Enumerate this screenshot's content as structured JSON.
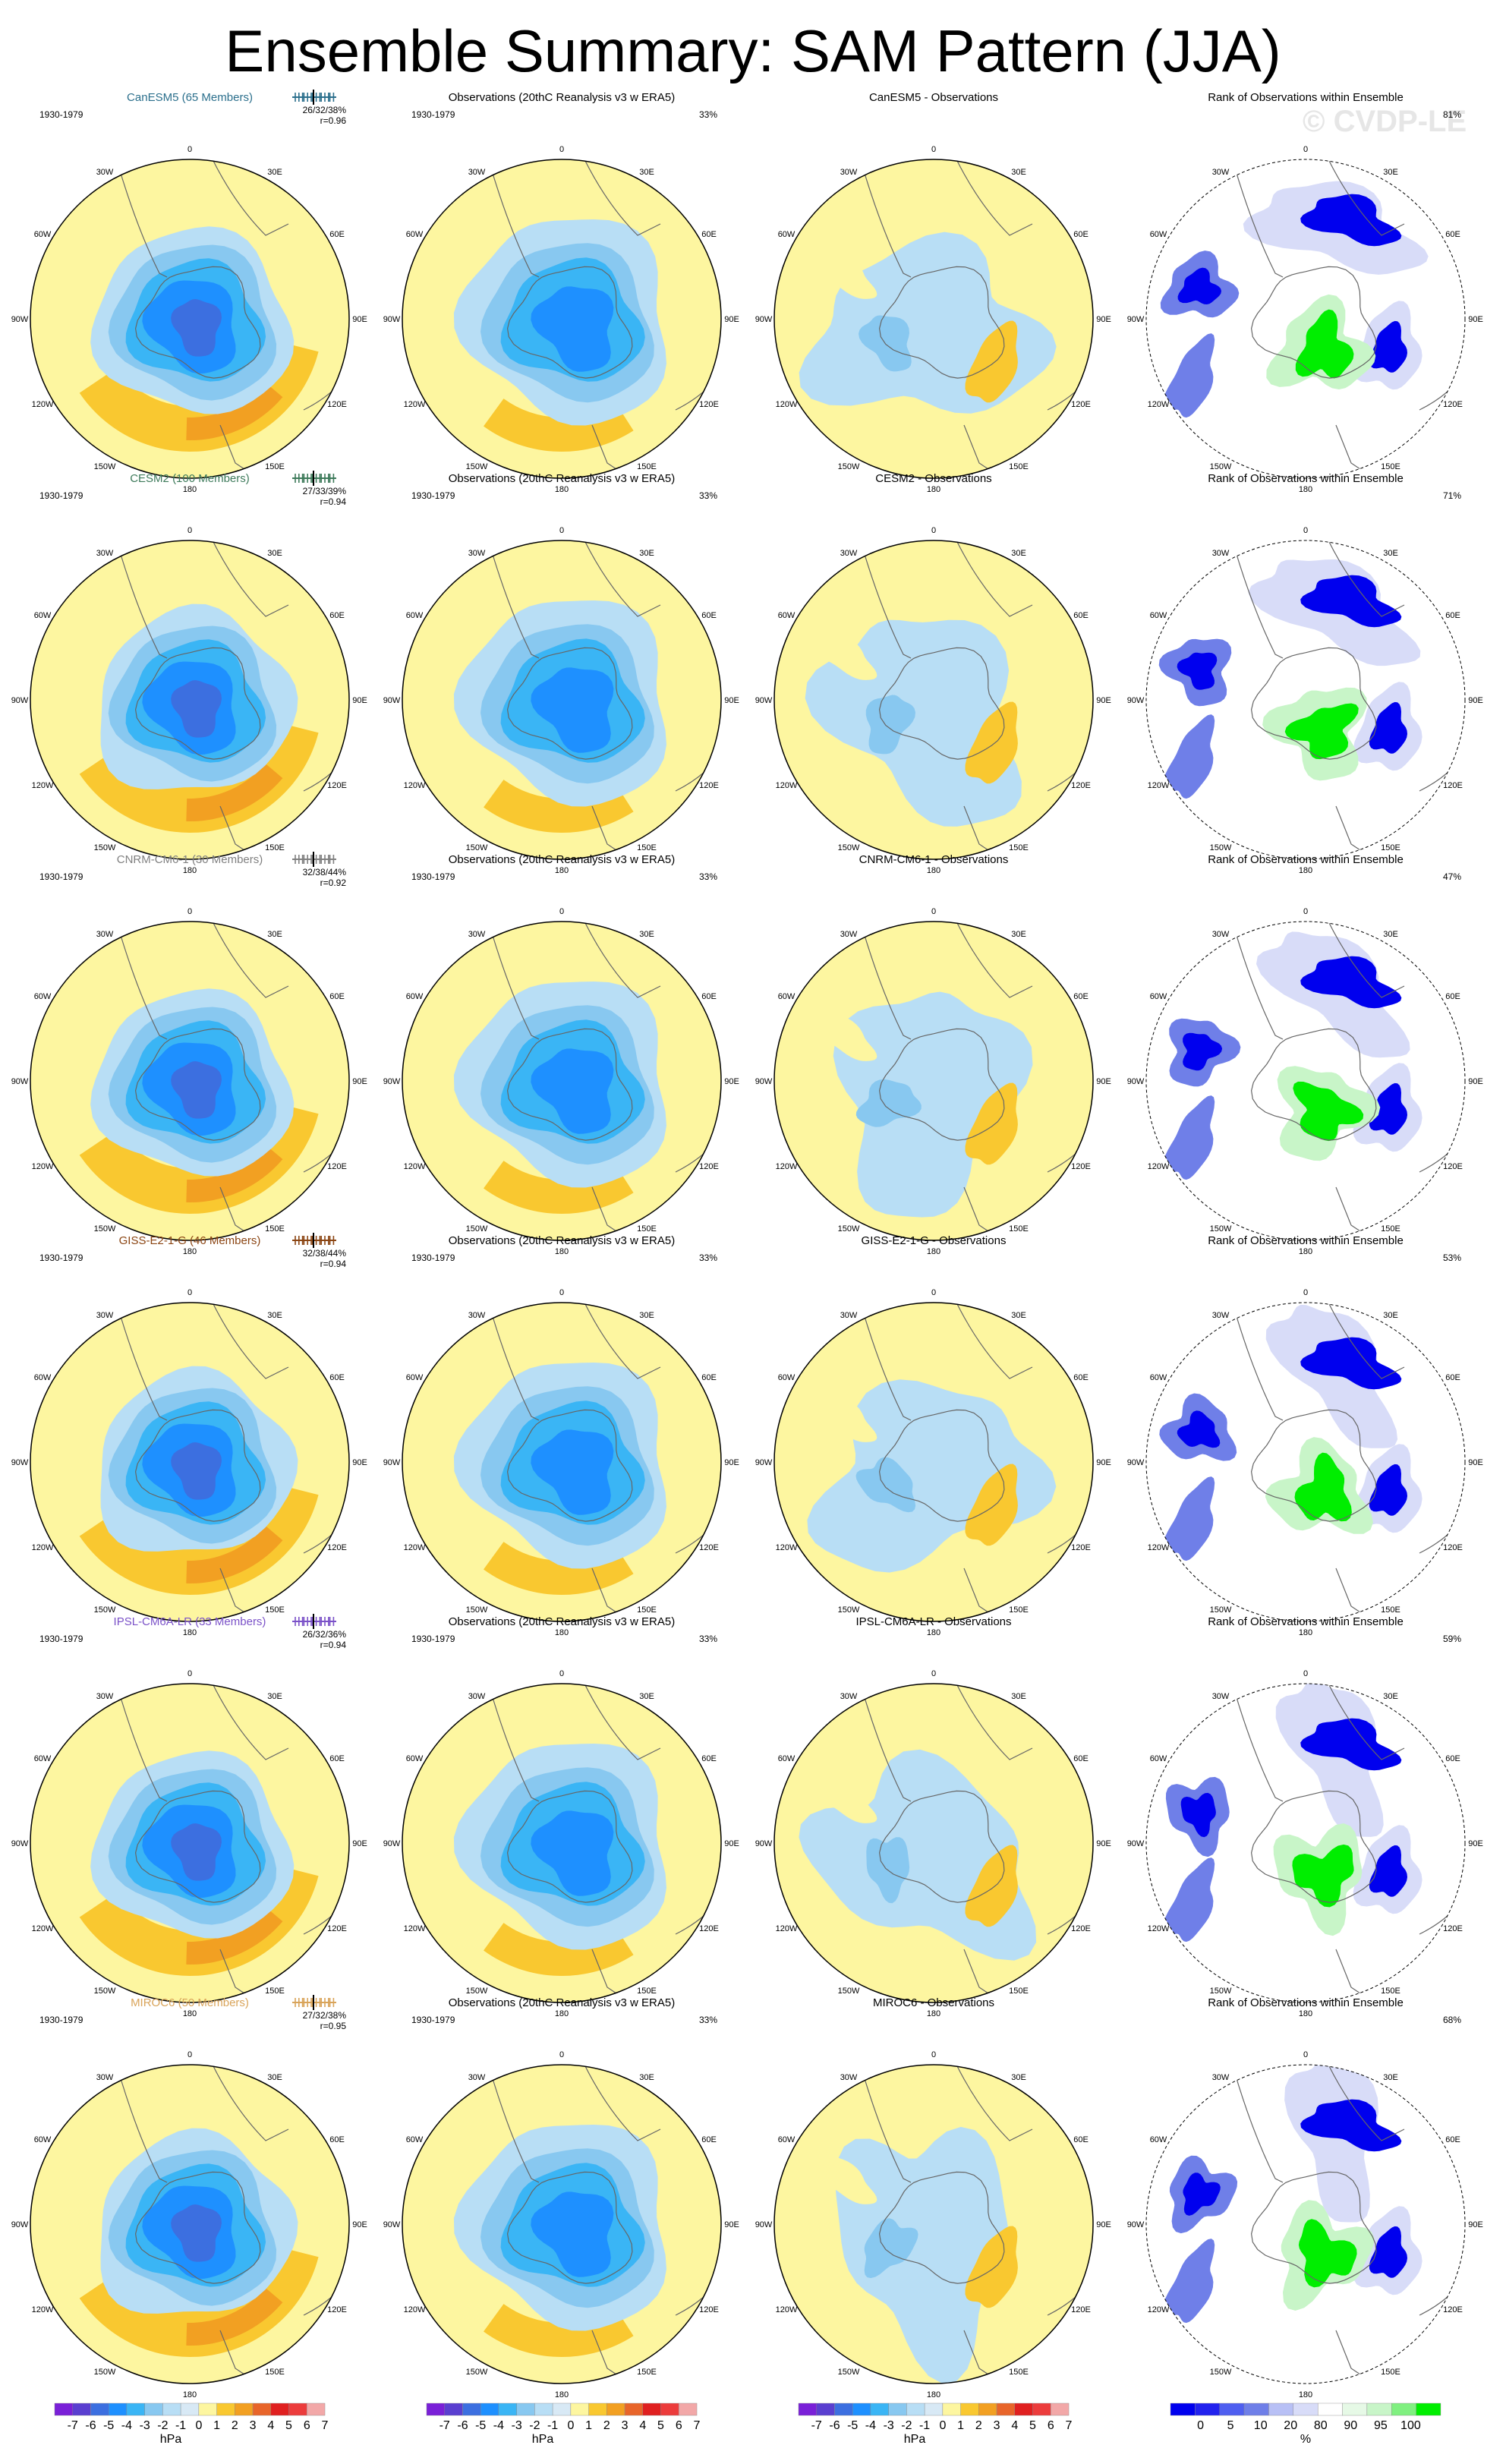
{
  "title": "Ensemble Summary: SAM Pattern (JJA)",
  "watermark": "© CVDP-LE",
  "period": "1930-1979",
  "obs_title": "Observations (20thC Reanalysis v3 w ERA5)",
  "obs_pct": "33%",
  "rank_title": "Rank of Observations within Ensemble",
  "lon_labels": [
    "0",
    "30E",
    "60E",
    "90E",
    "120E",
    "150E",
    "180",
    "150W",
    "120W",
    "90W",
    "60W",
    "30W"
  ],
  "rows": [
    {
      "model": "CanESM5 (65 Members)",
      "diff_title": "CanESM5 - Observations",
      "pcvar": "26/32/38%",
      "r": "r=0.96",
      "rank_pct": "81%",
      "color": "#2b6f8c"
    },
    {
      "model": "CESM2 (100 Members)",
      "diff_title": "CESM2 - Observations",
      "pcvar": "27/33/39%",
      "r": "r=0.94",
      "rank_pct": "71%",
      "color": "#3d7a5a"
    },
    {
      "model": "CNRM-CM6-1 (30 Members)",
      "diff_title": "CNRM-CM6-1 - Observations",
      "pcvar": "32/38/44%",
      "r": "r=0.92",
      "rank_pct": "47%",
      "color": "#808080"
    },
    {
      "model": "GISS-E2-1-G (46 Members)",
      "diff_title": "GISS-E2-1-G - Observations",
      "pcvar": "32/38/44%",
      "r": "r=0.94",
      "rank_pct": "53%",
      "color": "#8b4513"
    },
    {
      "model": "IPSL-CM6A-LR (33 Members)",
      "diff_title": "IPSL-CM6A-LR - Observations",
      "pcvar": "26/32/36%",
      "r": "r=0.94",
      "rank_pct": "59%",
      "color": "#7b52c8"
    },
    {
      "model": "MIROC6 (50 Members)",
      "diff_title": "MIROC6 - Observations",
      "pcvar": "27/32/38%",
      "r": "r=0.95",
      "rank_pct": "68%",
      "color": "#d9a45a"
    }
  ],
  "colorbars": [
    {
      "unit": "hPa",
      "ticks": [
        "-7",
        "-6",
        "-5",
        "-4",
        "-3",
        "-2",
        "-1",
        "0",
        "1",
        "2",
        "3",
        "4",
        "5",
        "6",
        "7"
      ]
    },
    {
      "unit": "hPa",
      "ticks": [
        "-7",
        "-6",
        "-5",
        "-4",
        "-3",
        "-2",
        "-1",
        "0",
        "1",
        "2",
        "3",
        "4",
        "5",
        "6",
        "7"
      ]
    },
    {
      "unit": "hPa",
      "ticks": [
        "-7",
        "-6",
        "-5",
        "-4",
        "-3",
        "-2",
        "-1",
        "0",
        "1",
        "2",
        "3",
        "4",
        "5",
        "6",
        "7"
      ]
    },
    {
      "unit": "%",
      "ticks": [
        "0",
        "5",
        "10",
        "20",
        "80",
        "90",
        "95",
        "100"
      ]
    }
  ],
  "colors": {
    "pos1": "#fdf6a0",
    "pos2": "#f9c830",
    "pos3": "#f2a022",
    "pos4": "#e8652a",
    "pos5": "#e02020",
    "pos6": "#f2a8a8",
    "neg1": "#b8def5",
    "neg2": "#88c8f0",
    "neg3": "#3ab5f5",
    "neg4": "#1e90ff",
    "neg5": "#3c6fe0",
    "neg6": "#5a3fd0",
    "neg7": "#7a20d8",
    "rank_blue": "#0000ee",
    "rank_mid": "#6f7fe8",
    "rank_light": "#d8dcf8",
    "rank_green": "#00ee00",
    "rank_lgreen": "#c8f5c8"
  }
}
